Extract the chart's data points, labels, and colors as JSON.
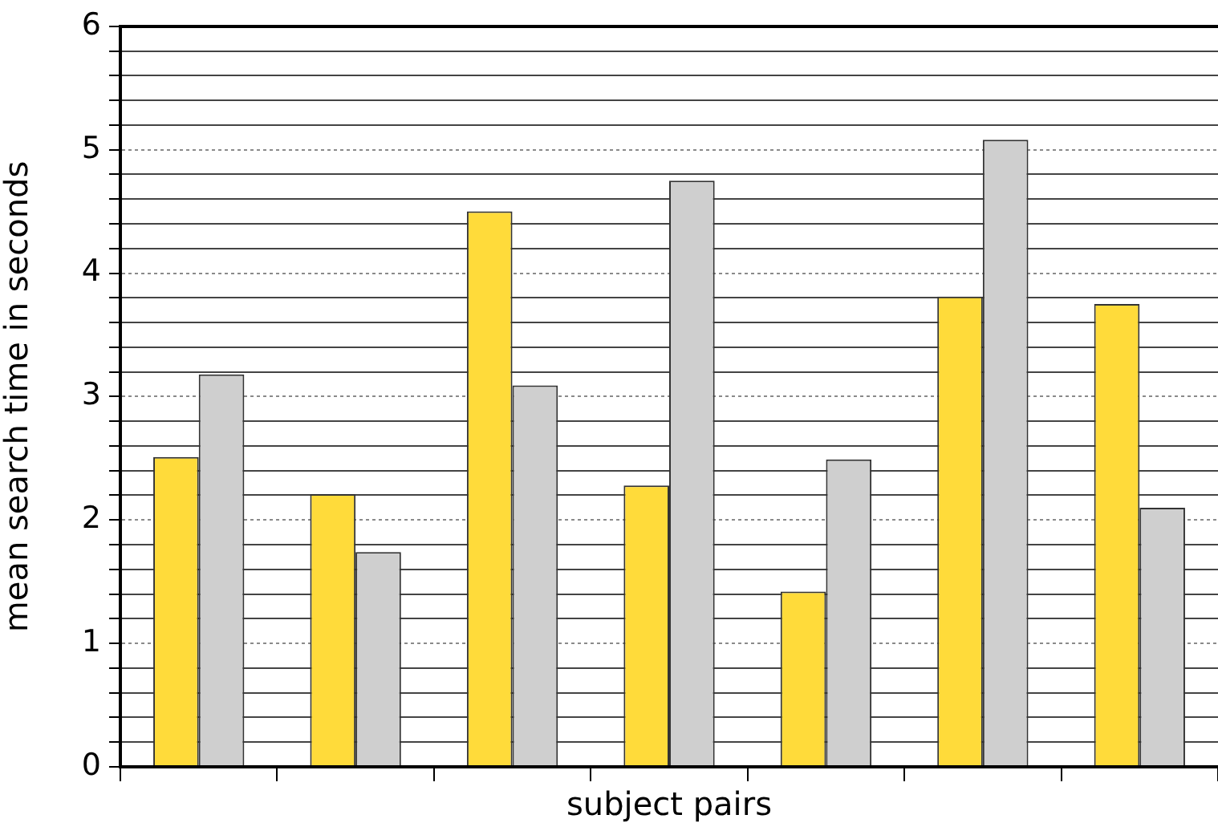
{
  "chart_data": {
    "type": "bar",
    "xlabel": "subject pairs",
    "ylabel": "mean search time in seconds",
    "categories": [
      null,
      null,
      null,
      null,
      null,
      null,
      null
    ],
    "series": [
      {
        "color": "#ffdb3a",
        "values": [
          2.51,
          2.21,
          4.5,
          2.28,
          1.42,
          3.81,
          3.75
        ]
      },
      {
        "color": "#cfcfcf",
        "values": [
          3.18,
          1.74,
          3.09,
          4.75,
          2.49,
          5.08,
          2.1
        ]
      }
    ],
    "ylim": [
      0,
      6
    ],
    "yticks": [
      0,
      {
        "value": 0.2,
        "label": null
      },
      {
        "value": 0.4,
        "label": null
      },
      {
        "value": 0.6,
        "label": null
      },
      {
        "value": 0.8,
        "label": null
      },
      1,
      {
        "value": 1.2,
        "label": null
      },
      {
        "value": 1.4,
        "label": null
      },
      {
        "value": 1.6,
        "label": null
      },
      {
        "value": 1.8,
        "label": null
      },
      2,
      {
        "value": 2.2,
        "label": null
      },
      {
        "value": 2.4,
        "label": null
      },
      {
        "value": 2.6,
        "label": null
      },
      {
        "value": 2.8,
        "label": null
      },
      3,
      {
        "value": 3.2,
        "label": null
      },
      {
        "value": 3.4,
        "label": null
      },
      {
        "value": 3.6,
        "label": null
      },
      {
        "value": 3.8,
        "label": null
      },
      4,
      {
        "value": 4.2,
        "label": null
      },
      {
        "value": 4.4,
        "label": null
      },
      {
        "value": 4.6,
        "label": null
      },
      {
        "value": 4.8,
        "label": null
      },
      5,
      {
        "value": 5.2,
        "label": null
      },
      {
        "value": 5.4,
        "label": null
      },
      {
        "value": 5.6,
        "label": null
      },
      {
        "value": 5.8,
        "label": null
      },
      6
    ],
    "grid": "y"
  }
}
